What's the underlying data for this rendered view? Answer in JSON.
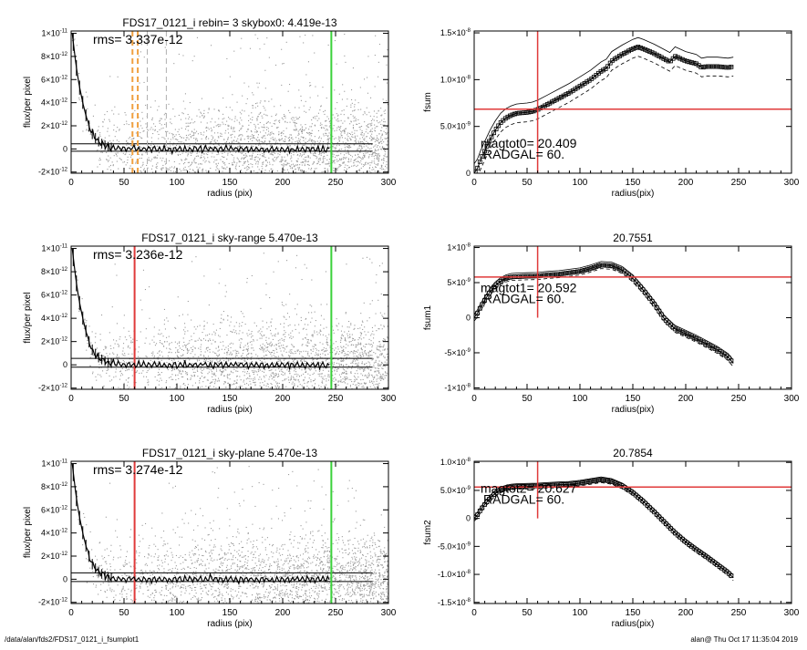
{
  "footer": {
    "path": "/data/alan/fds2/FDS17_0121_i_fsumplot1",
    "stamp": "alan@  Thu Oct 17 11:35:04 2019"
  },
  "colors": {
    "red": "#e03a3a",
    "green": "#3ad13a",
    "orange": "#f0a040",
    "scatter": "#9a9a9a",
    "curve": "#000000"
  },
  "chart_data": [
    {
      "panel": "profile-1",
      "type": "scatter",
      "title": "FDS17_0121_i rebin= 3    skybox0:  4.419e-13",
      "annotation": "rms= 3.337e-12",
      "xlabel": "radius (pix)",
      "ylabel": "flux/per pixel",
      "xlim": [
        0,
        300
      ],
      "ylim": [
        -2.1e-12,
        1.02e-11
      ],
      "xticks": [
        "0",
        "50",
        "100",
        "150",
        "200",
        "250",
        "300"
      ],
      "yticks": [
        {
          "v": -2e-12,
          "m": "-2×10",
          "e": "-12"
        },
        {
          "v": 0,
          "m": "0",
          "e": ""
        },
        {
          "v": 2e-12,
          "m": "2×10",
          "e": "-12"
        },
        {
          "v": 4e-12,
          "m": "4×10",
          "e": "-12"
        },
        {
          "v": 6e-12,
          "m": "6×10",
          "e": "-12"
        },
        {
          "v": 8e-12,
          "m": "8×10",
          "e": "-12"
        },
        {
          "v": 1e-11,
          "m": "1×10",
          "e": "-11"
        }
      ],
      "vlines": [
        {
          "x": 246,
          "color": "green"
        },
        {
          "x": 58,
          "color": "orange",
          "dash": true
        },
        {
          "x": 63,
          "color": "orange",
          "dash": true
        },
        {
          "x": 72,
          "color": "gray",
          "dash": true
        },
        {
          "x": 90,
          "color": "gray",
          "dash": true
        }
      ],
      "hlines": [
        4.4e-13,
        -2e-13
      ],
      "noise": 1.9e-12,
      "profile": [
        [
          1,
          1e-11
        ],
        [
          3,
          8.5e-12
        ],
        [
          5,
          7e-12
        ],
        [
          8,
          5.3e-12
        ],
        [
          12,
          3.6e-12
        ],
        [
          16,
          2.2e-12
        ],
        [
          20,
          1.3e-12
        ],
        [
          25,
          7e-13
        ],
        [
          30,
          4e-13
        ],
        [
          35,
          2e-13
        ],
        [
          40,
          1e-13
        ],
        [
          50,
          3e-14
        ],
        [
          60,
          0
        ],
        [
          80,
          -2e-14
        ],
        [
          100,
          0
        ],
        [
          150,
          0
        ],
        [
          200,
          -3e-14
        ],
        [
          245,
          0
        ]
      ]
    },
    {
      "panel": "fsum-0",
      "type": "line",
      "xlabel": "radius(pix)",
      "ylabel": "fsum",
      "xlim": [
        0,
        300
      ],
      "ylim": [
        0,
        1.52e-08
      ],
      "xticks": [
        "0",
        "50",
        "100",
        "150",
        "200",
        "250",
        "300"
      ],
      "yticks": [
        {
          "v": 0,
          "m": "0",
          "e": ""
        },
        {
          "v": 5e-09,
          "m": "5.0×10",
          "e": "-9"
        },
        {
          "v": 1e-08,
          "m": "1.0×10",
          "e": "-8"
        },
        {
          "v": 1.5e-08,
          "m": "1.5×10",
          "e": "-8"
        }
      ],
      "vline_x": 60,
      "hline_y": 6.85e-09,
      "labels": [
        "magtot0=  20.409",
        "RADGAL=     60."
      ],
      "series": [
        [
          0,
          0
        ],
        [
          3,
          5e-10
        ],
        [
          6,
          1.4e-09
        ],
        [
          10,
          2.4e-09
        ],
        [
          15,
          3.6e-09
        ],
        [
          20,
          4.6e-09
        ],
        [
          25,
          5.4e-09
        ],
        [
          30,
          5.9e-09
        ],
        [
          35,
          6.2e-09
        ],
        [
          40,
          6.4e-09
        ],
        [
          45,
          6.45e-09
        ],
        [
          50,
          6.5e-09
        ],
        [
          55,
          6.6e-09
        ],
        [
          60,
          6.8e-09
        ],
        [
          70,
          7.4e-09
        ],
        [
          80,
          8e-09
        ],
        [
          90,
          8.6e-09
        ],
        [
          100,
          9.3e-09
        ],
        [
          110,
          1e-08
        ],
        [
          120,
          1.09e-08
        ],
        [
          125,
          1.12e-08
        ],
        [
          130,
          1.2e-08
        ],
        [
          140,
          1.27e-08
        ],
        [
          150,
          1.33e-08
        ],
        [
          155,
          1.35e-08
        ],
        [
          160,
          1.33e-08
        ],
        [
          170,
          1.28e-08
        ],
        [
          180,
          1.22e-08
        ],
        [
          185,
          1.19e-08
        ],
        [
          190,
          1.25e-08
        ],
        [
          200,
          1.2e-08
        ],
        [
          210,
          1.17e-08
        ],
        [
          215,
          1.13e-08
        ],
        [
          220,
          1.14e-08
        ],
        [
          230,
          1.14e-08
        ],
        [
          240,
          1.13e-08
        ],
        [
          245,
          1.14e-08
        ]
      ],
      "band": 1e-09
    },
    {
      "panel": "profile-2",
      "type": "scatter",
      "title": "FDS17_0121_i sky-range  5.470e-13",
      "annotation": "rms= 3.236e-12",
      "xlabel": "radius (pix)",
      "ylabel": "flux/per pixel",
      "xlim": [
        0,
        300
      ],
      "ylim": [
        -2.1e-12,
        1.02e-11
      ],
      "xticks": [
        "0",
        "50",
        "100",
        "150",
        "200",
        "250",
        "300"
      ],
      "yticks": [
        {
          "v": -2e-12,
          "m": "-2×10",
          "e": "-12"
        },
        {
          "v": 0,
          "m": "0",
          "e": ""
        },
        {
          "v": 2e-12,
          "m": "2×10",
          "e": "-12"
        },
        {
          "v": 4e-12,
          "m": "4×10",
          "e": "-12"
        },
        {
          "v": 6e-12,
          "m": "6×10",
          "e": "-12"
        },
        {
          "v": 8e-12,
          "m": "8×10",
          "e": "-12"
        },
        {
          "v": 1e-11,
          "m": "1×10",
          "e": "-11"
        }
      ],
      "vlines": [
        {
          "x": 246,
          "color": "green"
        },
        {
          "x": 60,
          "color": "red"
        }
      ],
      "hlines": [
        5.5e-13,
        -2e-13
      ],
      "noise": 1.9e-12,
      "profile": [
        [
          1,
          1e-11
        ],
        [
          3,
          8.5e-12
        ],
        [
          5,
          7e-12
        ],
        [
          8,
          5.3e-12
        ],
        [
          12,
          3.6e-12
        ],
        [
          16,
          2.2e-12
        ],
        [
          20,
          1.3e-12
        ],
        [
          25,
          7e-13
        ],
        [
          30,
          4e-13
        ],
        [
          35,
          2e-13
        ],
        [
          40,
          1e-13
        ],
        [
          50,
          3e-14
        ],
        [
          60,
          0
        ],
        [
          80,
          -2e-14
        ],
        [
          100,
          0
        ],
        [
          150,
          0
        ],
        [
          200,
          -3e-14
        ],
        [
          245,
          0
        ]
      ]
    },
    {
      "panel": "fsum-1",
      "type": "line",
      "title": "20.7551",
      "xlabel": "radius(pix)",
      "ylabel": "fsum1",
      "xlim": [
        0,
        300
      ],
      "ylim": [
        -1.02e-08,
        1.02e-08
      ],
      "xticks": [
        "0",
        "50",
        "100",
        "150",
        "200",
        "250",
        "300"
      ],
      "yticks": [
        {
          "v": -1e-08,
          "m": "-1×10",
          "e": "-8"
        },
        {
          "v": -5e-09,
          "m": "-5×10",
          "e": "-9"
        },
        {
          "v": 0,
          "m": "0",
          "e": ""
        },
        {
          "v": 5e-09,
          "m": "5×10",
          "e": "-9"
        },
        {
          "v": 1e-08,
          "m": "1×10",
          "e": "-8"
        }
      ],
      "vline_x": 60,
      "hline_y": 5.8e-09,
      "labels": [
        "magtot1=  20.592",
        "RADGAL=     60."
      ],
      "series": [
        [
          0,
          0
        ],
        [
          3,
          6e-10
        ],
        [
          6,
          1.5e-09
        ],
        [
          10,
          2.5e-09
        ],
        [
          15,
          3.7e-09
        ],
        [
          20,
          4.6e-09
        ],
        [
          25,
          5.2e-09
        ],
        [
          30,
          5.6e-09
        ],
        [
          35,
          5.8e-09
        ],
        [
          40,
          5.85e-09
        ],
        [
          50,
          5.9e-09
        ],
        [
          60,
          5.95e-09
        ],
        [
          70,
          6.1e-09
        ],
        [
          80,
          6.2e-09
        ],
        [
          90,
          6.4e-09
        ],
        [
          100,
          6.6e-09
        ],
        [
          110,
          7e-09
        ],
        [
          120,
          7.5e-09
        ],
        [
          130,
          7.4e-09
        ],
        [
          140,
          6.8e-09
        ],
        [
          150,
          5.6e-09
        ],
        [
          160,
          3.9e-09
        ],
        [
          170,
          2e-09
        ],
        [
          180,
          -2e-10
        ],
        [
          190,
          -1.6e-09
        ],
        [
          200,
          -2.3e-09
        ],
        [
          210,
          -3e-09
        ],
        [
          220,
          -3.8e-09
        ],
        [
          230,
          -4.6e-09
        ],
        [
          240,
          -5.6e-09
        ],
        [
          245,
          -6.5e-09
        ]
      ],
      "band": 5e-10
    },
    {
      "panel": "profile-3",
      "type": "scatter",
      "title": "FDS17_0121_i sky-plane  5.470e-13",
      "annotation": "rms= 3.274e-12",
      "xlabel": "radius (pix)",
      "ylabel": "flux/per pixel",
      "xlim": [
        0,
        300
      ],
      "ylim": [
        -2.1e-12,
        1.02e-11
      ],
      "xticks": [
        "0",
        "50",
        "100",
        "150",
        "200",
        "250",
        "300"
      ],
      "yticks": [
        {
          "v": -2e-12,
          "m": "-2×10",
          "e": "-12"
        },
        {
          "v": 0,
          "m": "0",
          "e": ""
        },
        {
          "v": 2e-12,
          "m": "2×10",
          "e": "-12"
        },
        {
          "v": 4e-12,
          "m": "4×10",
          "e": "-12"
        },
        {
          "v": 6e-12,
          "m": "6×10",
          "e": "-12"
        },
        {
          "v": 8e-12,
          "m": "8×10",
          "e": "-12"
        },
        {
          "v": 1e-11,
          "m": "1×10",
          "e": "-11"
        }
      ],
      "vlines": [
        {
          "x": 246,
          "color": "green"
        },
        {
          "x": 60,
          "color": "red"
        }
      ],
      "hlines": [
        5.5e-13,
        -2e-13
      ],
      "noise": 1.9e-12,
      "profile": [
        [
          1,
          1e-11
        ],
        [
          3,
          8.5e-12
        ],
        [
          5,
          7e-12
        ],
        [
          8,
          5.3e-12
        ],
        [
          12,
          3.6e-12
        ],
        [
          16,
          2.2e-12
        ],
        [
          20,
          1.3e-12
        ],
        [
          25,
          7e-13
        ],
        [
          30,
          4e-13
        ],
        [
          35,
          2e-13
        ],
        [
          40,
          1e-13
        ],
        [
          50,
          3e-14
        ],
        [
          60,
          0
        ],
        [
          80,
          -2e-14
        ],
        [
          100,
          0
        ],
        [
          150,
          0
        ],
        [
          200,
          -3e-14
        ],
        [
          245,
          0
        ]
      ]
    },
    {
      "panel": "fsum-2",
      "type": "line",
      "title": "20.7854",
      "xlabel": "radius(pix)",
      "ylabel": "fsum2",
      "xlim": [
        0,
        300
      ],
      "ylim": [
        -1.52e-08,
        1.02e-08
      ],
      "xticks": [
        "0",
        "50",
        "100",
        "150",
        "200",
        "250",
        "300"
      ],
      "yticks": [
        {
          "v": -1.5e-08,
          "m": "-1.5×10",
          "e": "-8"
        },
        {
          "v": -1e-08,
          "m": "-1.0×10",
          "e": "-8"
        },
        {
          "v": -5e-09,
          "m": "-5.0×10",
          "e": "-9"
        },
        {
          "v": 0,
          "m": "0",
          "e": ""
        },
        {
          "v": 5e-09,
          "m": "5.0×10",
          "e": "-9"
        },
        {
          "v": 1e-08,
          "m": "1.0×10",
          "e": "-8"
        }
      ],
      "vline_x": 60,
      "hline_y": 5.6e-09,
      "labels": [
        "magtot2=  20.627",
        "RADGAL=     60."
      ],
      "series": [
        [
          0,
          0
        ],
        [
          3,
          6e-10
        ],
        [
          6,
          1.5e-09
        ],
        [
          10,
          2.5e-09
        ],
        [
          15,
          3.6e-09
        ],
        [
          20,
          4.5e-09
        ],
        [
          25,
          5.1e-09
        ],
        [
          30,
          5.4e-09
        ],
        [
          35,
          5.6e-09
        ],
        [
          40,
          5.7e-09
        ],
        [
          50,
          5.75e-09
        ],
        [
          60,
          5.8e-09
        ],
        [
          70,
          5.9e-09
        ],
        [
          80,
          6e-09
        ],
        [
          90,
          6.1e-09
        ],
        [
          100,
          6.3e-09
        ],
        [
          110,
          6.6e-09
        ],
        [
          120,
          6.9e-09
        ],
        [
          130,
          6.6e-09
        ],
        [
          140,
          5.8e-09
        ],
        [
          150,
          4.6e-09
        ],
        [
          160,
          3e-09
        ],
        [
          170,
          1.2e-09
        ],
        [
          180,
          -7e-10
        ],
        [
          190,
          -2.6e-09
        ],
        [
          200,
          -4.2e-09
        ],
        [
          210,
          -5.6e-09
        ],
        [
          220,
          -6.9e-09
        ],
        [
          230,
          -8.3e-09
        ],
        [
          240,
          -9.7e-09
        ],
        [
          245,
          -1.06e-08
        ]
      ],
      "band": 5e-10
    }
  ]
}
